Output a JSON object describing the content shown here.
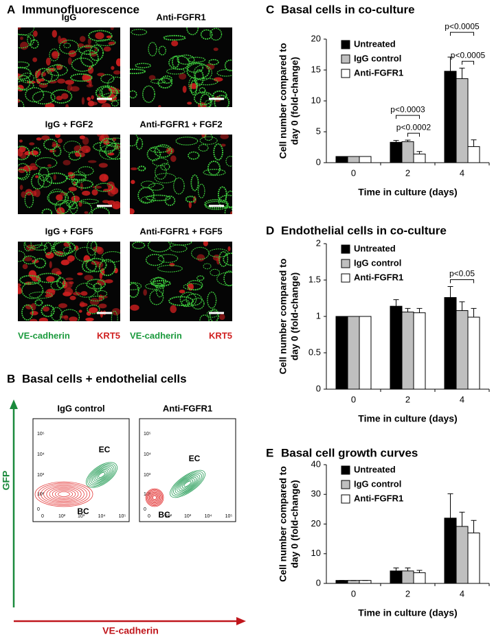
{
  "panel_a": {
    "letter": "A",
    "title": "Immunofluorescence",
    "images": [
      "IgG",
      "Anti-FGFR1",
      "IgG + FGF2",
      "Anti-FGFR1 + FGF2",
      "IgG + FGF5",
      "Anti-FGFR1 + FGF5"
    ],
    "stain_labels": [
      "VE-cadherin",
      "KRT5",
      "VE-cadherin",
      "KRT5"
    ]
  },
  "panel_b": {
    "letter": "B",
    "title": "Basal cells + endothelial cells",
    "ylabel": "GFP",
    "xlabel": "VE-cadherin",
    "plots": [
      {
        "title": "IgG control",
        "xticks": [
          "0",
          "10²",
          "10³",
          "10⁴",
          "10⁵"
        ],
        "yticks": [
          "0",
          "10²",
          "10³",
          "10⁴",
          "10⁵"
        ],
        "labels": [
          "EC",
          "BC"
        ]
      },
      {
        "title": "Anti-FGFR1",
        "xticks": [
          "0",
          "10²",
          "10³",
          "10⁴",
          "10⁵"
        ],
        "yticks": [
          "0",
          "10²",
          "10³",
          "10⁴",
          "10⁵"
        ],
        "labels": [
          "EC",
          "BC"
        ]
      }
    ]
  },
  "chart_data": [
    {
      "type": "bar",
      "letter": "C",
      "title": "Basal cells in co-culture",
      "ylabel": [
        "Cell number compared to",
        "day 0 (fold-change)"
      ],
      "xlabel": "Time in culture (days)",
      "categories": [
        "0",
        "2",
        "4"
      ],
      "ylim": [
        0,
        20
      ],
      "yticks": [
        0,
        5,
        10,
        15,
        20
      ],
      "legend": "top-left",
      "series": [
        {
          "name": "Untreated",
          "color": "#000000",
          "values": [
            1,
            3.3,
            14.8
          ],
          "errors": [
            0,
            0.3,
            2.3
          ]
        },
        {
          "name": "IgG control",
          "color": "#bfbfbf",
          "values": [
            1,
            3.4,
            13.6
          ],
          "errors": [
            0,
            0.25,
            1.7
          ]
        },
        {
          "name": "Anti-FGFR1",
          "color": "#ffffff",
          "values": [
            1,
            1.4,
            2.6
          ],
          "errors": [
            0,
            0.4,
            1.1
          ]
        }
      ],
      "annotations": [
        {
          "text": "p<0.0003",
          "category": "2",
          "from": "Untreated",
          "to": "Anti-FGFR1"
        },
        {
          "text": "p<0.0002",
          "category": "2",
          "from": "IgG control",
          "to": "Anti-FGFR1"
        },
        {
          "text": "p<0.0005",
          "category": "4",
          "from": "Untreated",
          "to": "Anti-FGFR1"
        },
        {
          "text": "p<0.0005",
          "category": "4",
          "from": "IgG control",
          "to": "Anti-FGFR1"
        }
      ]
    },
    {
      "type": "bar",
      "letter": "D",
      "title": "Endothelial cells in co-culture",
      "ylabel": [
        "Cell number compared to",
        "day 0 (fold-change)"
      ],
      "xlabel": "Time in culture (days)",
      "categories": [
        "0",
        "2",
        "4"
      ],
      "ylim": [
        0,
        2
      ],
      "yticks": [
        0,
        0.5,
        1,
        1.5,
        2
      ],
      "legend": "top-left",
      "series": [
        {
          "name": "Untreated",
          "color": "#000000",
          "values": [
            1,
            1.14,
            1.26
          ],
          "errors": [
            0,
            0.09,
            0.15
          ]
        },
        {
          "name": "IgG control",
          "color": "#bfbfbf",
          "values": [
            1,
            1.06,
            1.08
          ],
          "errors": [
            0,
            0.05,
            0.12
          ]
        },
        {
          "name": "Anti-FGFR1",
          "color": "#ffffff",
          "values": [
            1,
            1.05,
            0.99
          ],
          "errors": [
            0,
            0.06,
            0.12
          ]
        }
      ],
      "annotations": [
        {
          "text": "p<0.05",
          "category": "4",
          "from": "Untreated",
          "to": "Anti-FGFR1"
        }
      ]
    },
    {
      "type": "bar",
      "letter": "E",
      "title": "Basal cell growth curves",
      "ylabel": [
        "Cell number compared to",
        "day 0 (fold-change)"
      ],
      "xlabel": "Time in culture (days)",
      "categories": [
        "0",
        "2",
        "4"
      ],
      "ylim": [
        0,
        40
      ],
      "yticks": [
        0,
        10,
        20,
        30,
        40
      ],
      "legend": "top-left",
      "series": [
        {
          "name": "Untreated",
          "color": "#000000",
          "values": [
            1,
            4.2,
            22
          ],
          "errors": [
            0,
            1,
            8.2
          ]
        },
        {
          "name": "IgG control",
          "color": "#bfbfbf",
          "values": [
            1,
            4.2,
            19.2
          ],
          "errors": [
            0,
            1,
            4.8
          ]
        },
        {
          "name": "Anti-FGFR1",
          "color": "#ffffff",
          "values": [
            1,
            3.6,
            17
          ],
          "errors": [
            0,
            0.8,
            4.2
          ]
        }
      ],
      "annotations": []
    }
  ]
}
